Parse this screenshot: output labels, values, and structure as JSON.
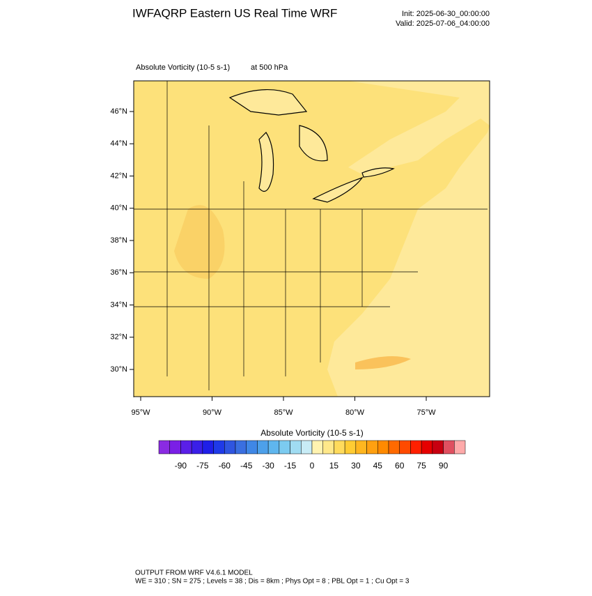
{
  "title": "IWFAQRP Eastern US Real Time WRF",
  "init": "Init: 2025-06-30_00:00:00",
  "valid": "Valid: 2025-07-06_04:00:00",
  "field_label": "Absolute Vorticity   (10-5 s-1)",
  "level_label": "at   500 hPa",
  "map": {
    "lat_ticks": [
      {
        "value": 46,
        "label": "46°N"
      },
      {
        "value": 44,
        "label": "44°N"
      },
      {
        "value": 42,
        "label": "42°N"
      },
      {
        "value": 40,
        "label": "40°N"
      },
      {
        "value": 38,
        "label": "38°N"
      },
      {
        "value": 36,
        "label": "36°N"
      },
      {
        "value": 34,
        "label": "34°N"
      },
      {
        "value": 32,
        "label": "32°N"
      },
      {
        "value": 30,
        "label": "30°N"
      }
    ],
    "lon_ticks": [
      {
        "value": -95,
        "label": "95°W"
      },
      {
        "value": -90,
        "label": "90°W"
      },
      {
        "value": -85,
        "label": "85°W"
      },
      {
        "value": -80,
        "label": "80°W"
      },
      {
        "value": -75,
        "label": "75°W"
      }
    ]
  },
  "colorbar": {
    "label": "Absolute Vorticity  (10-5 s-1)",
    "range": [
      -105,
      105
    ],
    "ticks": [
      -90,
      -75,
      -60,
      -45,
      -30,
      -15,
      0,
      15,
      30,
      45,
      60,
      75,
      90
    ],
    "colors": [
      "#8a2be2",
      "#7a1fe6",
      "#5a1fe8",
      "#3a1fe8",
      "#1f1fe8",
      "#1f3ae8",
      "#2f55e0",
      "#3a6fe0",
      "#3f87e6",
      "#4da0ea",
      "#5fb6ee",
      "#7ccbf0",
      "#a0dcf2",
      "#c8ecf6",
      "#fff3b0",
      "#ffe88a",
      "#ffdb5c",
      "#ffcc33",
      "#ffb61f",
      "#ffa010",
      "#ff8a00",
      "#ff6a00",
      "#ff4a00",
      "#ff2000",
      "#e60000",
      "#c80010",
      "#e05060",
      "#ffaaaa"
    ]
  },
  "footer": {
    "line1": "OUTPUT FROM WRF V4.6.1 MODEL",
    "line2": "WE = 310 ; SN = 275 ; Levels = 38 ; Dis = 8km ; Phys Opt = 8 ; PBL Opt = 1 ; Cu Opt = 3"
  }
}
